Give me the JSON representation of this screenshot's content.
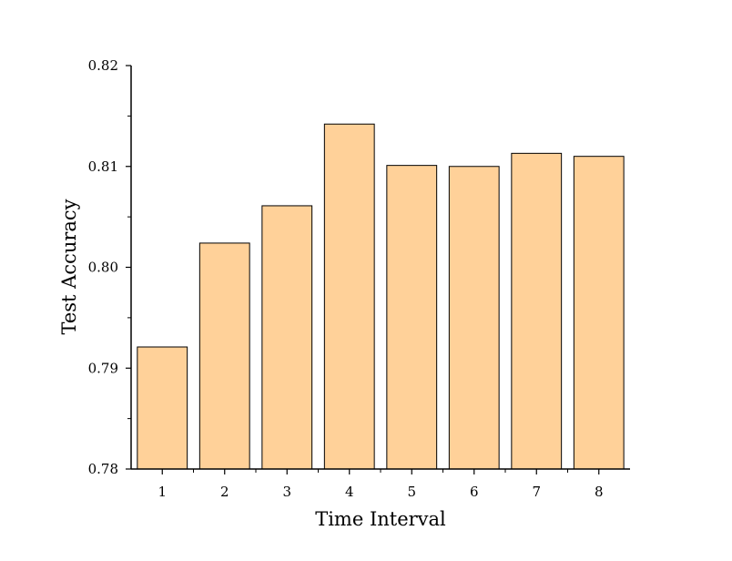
{
  "chart_data": {
    "type": "bar",
    "title": "",
    "xlabel": "Time Interval",
    "ylabel": "Test Accuracy",
    "categories": [
      "1",
      "2",
      "3",
      "4",
      "5",
      "6",
      "7",
      "8"
    ],
    "values": [
      0.7921,
      0.8024,
      0.8061,
      0.8142,
      0.8101,
      0.81,
      0.8113,
      0.811
    ],
    "ylim": [
      0.78,
      0.82
    ],
    "yticks": [
      "0.78",
      "0.79",
      "0.80",
      "0.81",
      "0.82"
    ],
    "bar_color": "#FFD199",
    "bar_edge_color": "#000000",
    "grid": false,
    "legend": "none"
  }
}
